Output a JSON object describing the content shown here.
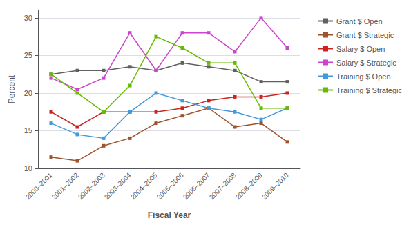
{
  "chart_data": {
    "type": "line",
    "categories": [
      "2000–2001",
      "2001–2002",
      "2002–2003",
      "2003–2004",
      "2004–2005",
      "2005–2006",
      "2006–2007",
      "2007–2008",
      "2008–2009",
      "2009–2010"
    ],
    "series": [
      {
        "name": "Grant $ Open",
        "color": "#606060",
        "values": [
          22.5,
          23.0,
          23.0,
          23.5,
          23.0,
          24.0,
          23.5,
          23.0,
          21.5,
          21.5
        ]
      },
      {
        "name": "Grant $ Strategic",
        "color": "#A0522D",
        "values": [
          11.5,
          11.0,
          13.0,
          14.0,
          16.0,
          17.0,
          18.0,
          15.5,
          16.0,
          13.5
        ]
      },
      {
        "name": "Salary $ Open",
        "color": "#CC2222",
        "values": [
          17.5,
          15.5,
          17.5,
          17.5,
          17.5,
          18.0,
          19.0,
          19.5,
          19.5,
          20.0
        ]
      },
      {
        "name": "Salary $ Strategic",
        "color": "#CC44CC",
        "values": [
          22.0,
          20.5,
          22.0,
          28.0,
          23.0,
          28.0,
          28.0,
          25.5,
          30.0,
          26.0
        ]
      },
      {
        "name": "Training $ Open",
        "color": "#4499DD",
        "values": [
          16.0,
          14.5,
          14.0,
          17.5,
          20.0,
          19.0,
          18.0,
          17.5,
          16.5,
          18.0
        ]
      },
      {
        "name": "Training $ Strategic",
        "color": "#66BB00",
        "values": [
          22.5,
          20.0,
          17.5,
          21.0,
          27.5,
          26.0,
          24.0,
          24.0,
          18.0,
          18.0
        ]
      }
    ],
    "xlabel": "Fiscal Year",
    "ylabel": "Percent",
    "ylim": [
      10,
      31
    ],
    "yticks": [
      10,
      15,
      20,
      25,
      30
    ],
    "grid": true,
    "legend": "right",
    "marker": "square"
  }
}
